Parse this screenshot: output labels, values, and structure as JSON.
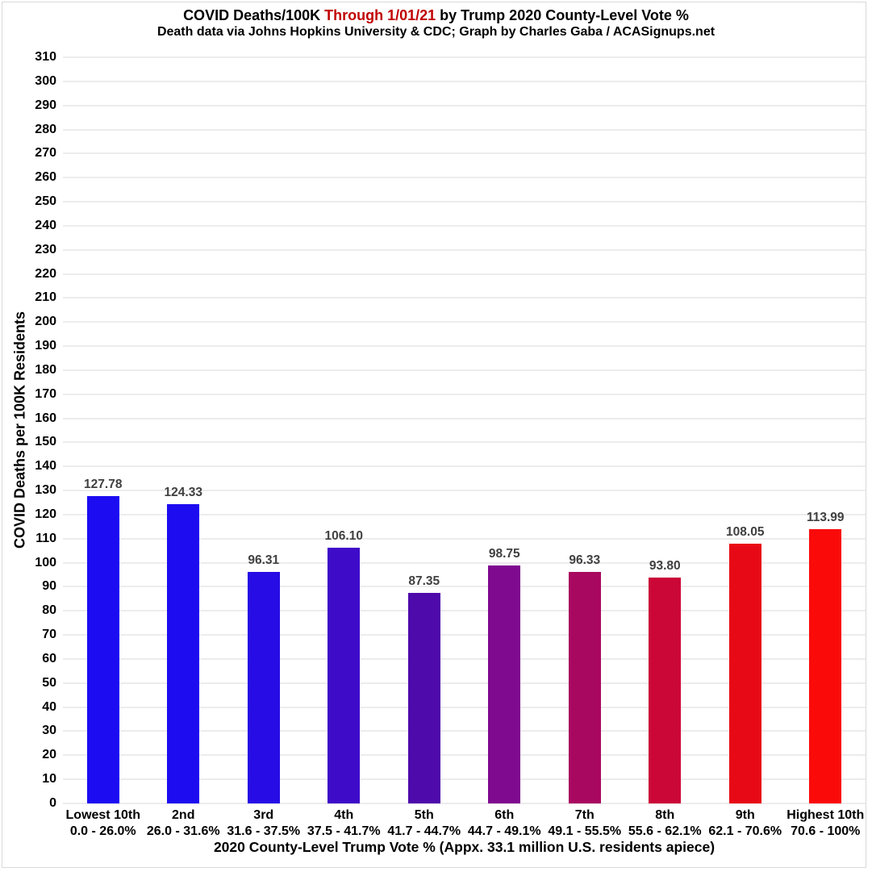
{
  "header": {
    "title_before": "COVID Deaths/100K ",
    "title_red": "Through 1/01/21",
    "title_after": " by Trump 2020 County-Level Vote %",
    "subtitle": "Death data via Johns Hopkins University & CDC; Graph by Charles Gaba / ACASignups.net"
  },
  "chart_data": {
    "type": "bar",
    "title": "COVID Deaths/100K Through 1/01/21 by Trump 2020 County-Level Vote %",
    "subtitle": "Death data via Johns Hopkins University & CDC; Graph by Charles Gaba / ACASignups.net",
    "xlabel": "2020 County-Level Trump Vote % (Appx. 33.1 million U.S. residents apiece)",
    "ylabel": "COVID Deaths per 100K Residents",
    "ylim": [
      0,
      310
    ],
    "ytick_step": 10,
    "grid": "horizontal",
    "legend": "none",
    "categories": [
      {
        "label": "Lowest 10th",
        "range": "0.0 - 26.0%"
      },
      {
        "label": "2nd",
        "range": "26.0 - 31.6%"
      },
      {
        "label": "3rd",
        "range": "31.6 - 37.5%"
      },
      {
        "label": "4th",
        "range": "37.5 - 41.7%"
      },
      {
        "label": "5th",
        "range": "41.7 - 44.7%"
      },
      {
        "label": "6th",
        "range": "44.7 - 49.1%"
      },
      {
        "label": "7th",
        "range": "49.1 - 55.5%"
      },
      {
        "label": "8th",
        "range": "55.6 - 62.1%"
      },
      {
        "label": "9th",
        "range": "62.1 - 70.6%"
      },
      {
        "label": "Highest 10th",
        "range": "70.6 - 100%"
      }
    ],
    "values": [
      127.78,
      124.33,
      96.31,
      106.1,
      87.35,
      98.75,
      96.33,
      93.8,
      108.05,
      113.99
    ],
    "value_labels": [
      "127.78",
      "124.33",
      "96.31",
      "106.10",
      "87.35",
      "98.75",
      "96.33",
      "93.80",
      "108.05",
      "113.99"
    ],
    "bar_colors": [
      "#1c0cf2",
      "#1e0cf0",
      "#270ce6",
      "#3e0bc8",
      "#4e0aab",
      "#7f098f",
      "#a90860",
      "#cb0738",
      "#e80916",
      "#fb0a0a"
    ],
    "colors": {
      "title_highlight": "#c00000",
      "value_label": "#404040",
      "gridline": "#d9d9d9",
      "text": "#000000",
      "background": "#ffffff"
    }
  }
}
